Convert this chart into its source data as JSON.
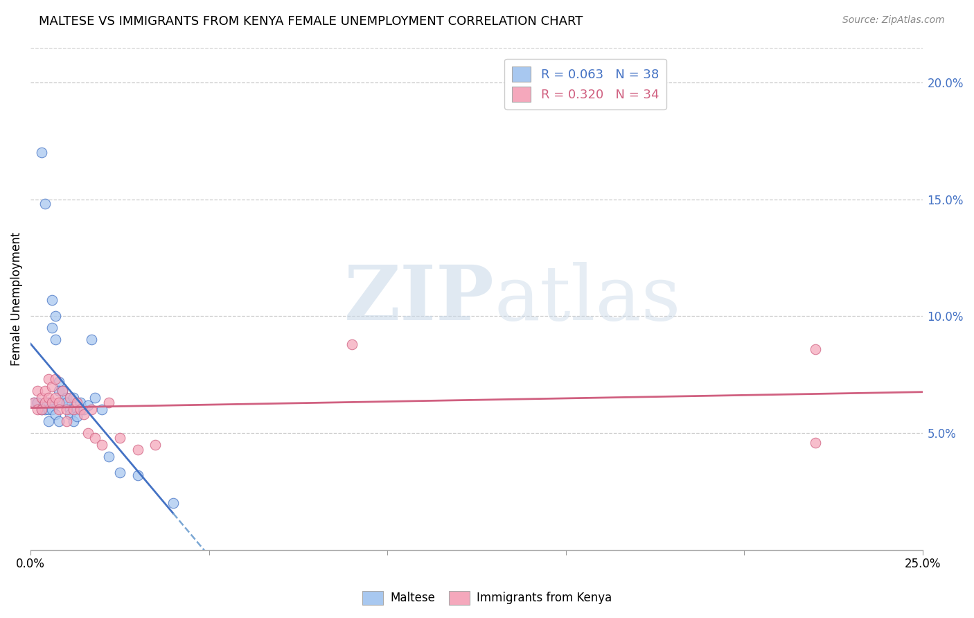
{
  "title": "MALTESE VS IMMIGRANTS FROM KENYA FEMALE UNEMPLOYMENT CORRELATION CHART",
  "source": "Source: ZipAtlas.com",
  "ylabel": "Female Unemployment",
  "right_yticks": [
    "5.0%",
    "10.0%",
    "15.0%",
    "20.0%"
  ],
  "right_ytick_vals": [
    0.05,
    0.1,
    0.15,
    0.2
  ],
  "xlim": [
    0.0,
    0.25
  ],
  "ylim": [
    0.0,
    0.215
  ],
  "legend_r1": "R = 0.063   N = 38",
  "legend_r2": "R = 0.320   N = 34",
  "maltese_color": "#a8c8f0",
  "kenya_color": "#f5a8bc",
  "trendline_maltese_solid_color": "#4472c4",
  "trendline_malta_dashed_color": "#7ba7d4",
  "trendline_kenya_color": "#d06080",
  "watermark_zip": "ZIP",
  "watermark_atlas": "atlas",
  "maltese_x": [
    0.001,
    0.002,
    0.003,
    0.003,
    0.004,
    0.004,
    0.005,
    0.005,
    0.005,
    0.006,
    0.006,
    0.006,
    0.007,
    0.007,
    0.007,
    0.008,
    0.008,
    0.008,
    0.009,
    0.009,
    0.01,
    0.01,
    0.011,
    0.011,
    0.012,
    0.012,
    0.013,
    0.013,
    0.014,
    0.015,
    0.016,
    0.017,
    0.018,
    0.02,
    0.022,
    0.025,
    0.03,
    0.04
  ],
  "maltese_y": [
    0.063,
    0.063,
    0.17,
    0.06,
    0.148,
    0.06,
    0.063,
    0.06,
    0.055,
    0.107,
    0.095,
    0.06,
    0.1,
    0.09,
    0.058,
    0.072,
    0.068,
    0.055,
    0.068,
    0.063,
    0.065,
    0.063,
    0.06,
    0.058,
    0.065,
    0.055,
    0.06,
    0.057,
    0.063,
    0.06,
    0.062,
    0.09,
    0.065,
    0.06,
    0.04,
    0.033,
    0.032,
    0.02
  ],
  "kenya_x": [
    0.001,
    0.002,
    0.002,
    0.003,
    0.003,
    0.004,
    0.004,
    0.005,
    0.005,
    0.006,
    0.006,
    0.007,
    0.007,
    0.008,
    0.008,
    0.009,
    0.01,
    0.01,
    0.011,
    0.012,
    0.013,
    0.014,
    0.015,
    0.016,
    0.017,
    0.018,
    0.02,
    0.022,
    0.025,
    0.03,
    0.035,
    0.09,
    0.22,
    0.22
  ],
  "kenya_y": [
    0.063,
    0.068,
    0.06,
    0.065,
    0.06,
    0.068,
    0.063,
    0.073,
    0.065,
    0.07,
    0.063,
    0.073,
    0.065,
    0.063,
    0.06,
    0.068,
    0.06,
    0.055,
    0.065,
    0.06,
    0.063,
    0.06,
    0.058,
    0.05,
    0.06,
    0.048,
    0.045,
    0.063,
    0.048,
    0.043,
    0.045,
    0.088,
    0.046,
    0.086
  ]
}
